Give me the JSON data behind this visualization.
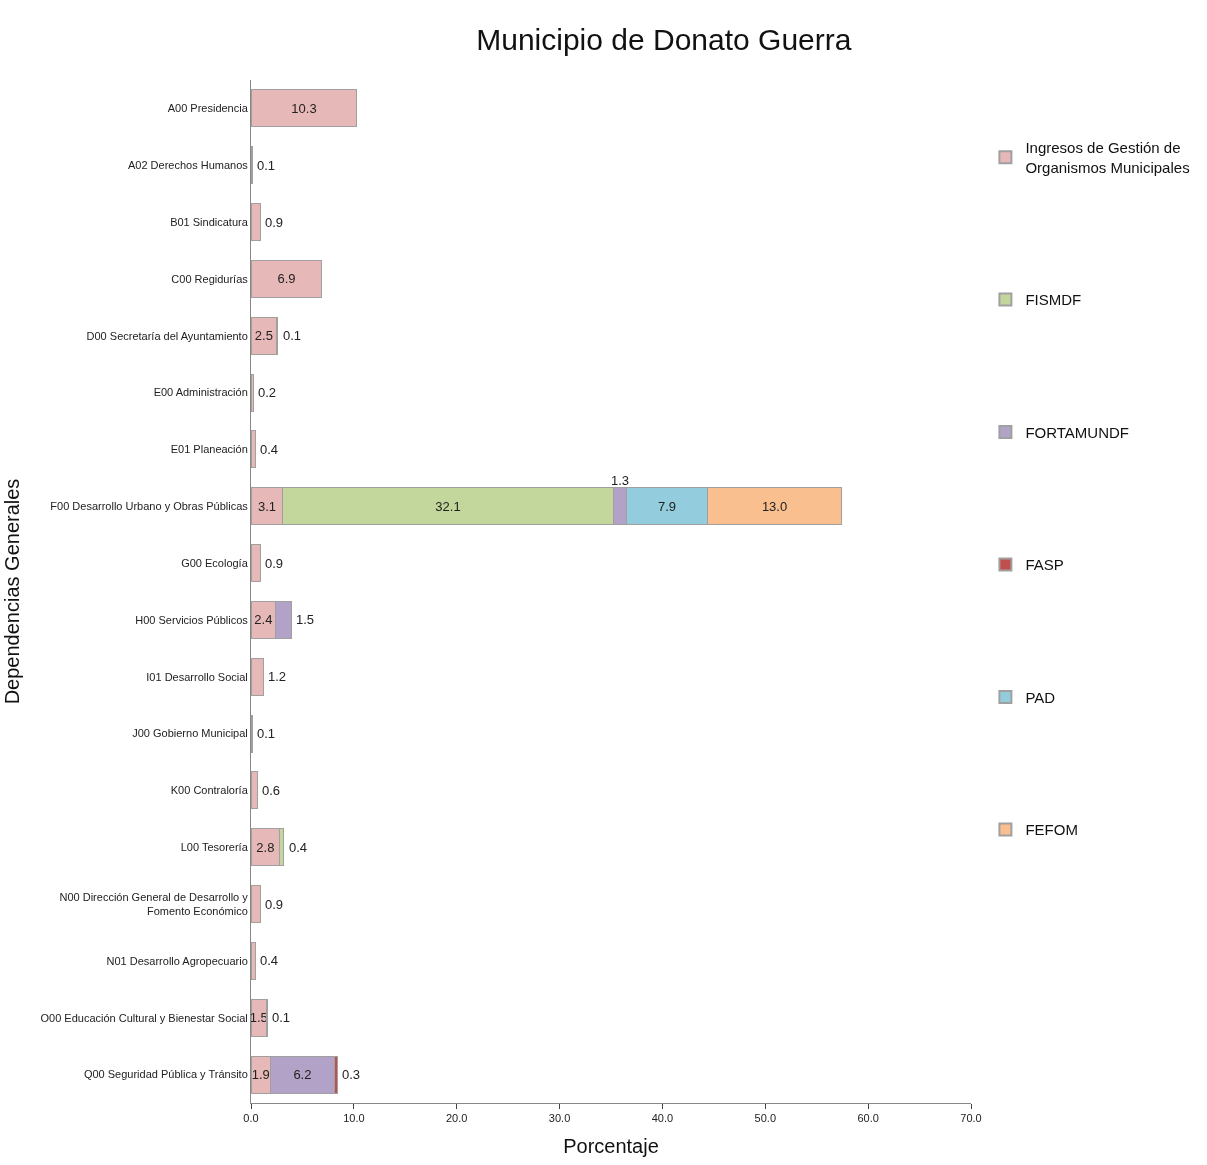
{
  "chart_data": {
    "type": "bar",
    "orientation": "horizontal",
    "stacked": true,
    "data_labels": true,
    "title": "Municipio de Donato Guerra",
    "xlabel": "Porcentaje",
    "ylabel": "Dependencias Generales",
    "categories": [
      "A00 Presidencia",
      "A02 Derechos Humanos",
      "B01 Sindicatura",
      "C00 Regidurías",
      "D00 Secretaría del Ayuntamiento",
      "E00 Administración",
      "E01 Planeación",
      "F00 Desarrollo Urbano y Obras Públicas",
      "G00 Ecología",
      "H00 Servicios Públicos",
      "I01 Desarrollo Social",
      "J00 Gobierno Municipal",
      "K00 Contraloría",
      "L00 Tesorería",
      "N00 Dirección General de Desarrollo y Fomento Económico",
      "N01 Desarrollo Agropecuario",
      "O00 Educación Cultural y Bienestar Social",
      "Q00 Seguridad Pública y Tránsito"
    ],
    "series": [
      {
        "name": "Ingresos de Gestión de Organismos Municipales",
        "color": "#e6b9b8",
        "values": [
          10.3,
          0.1,
          0.9,
          6.9,
          2.5,
          0.2,
          0.4,
          3.1,
          0.9,
          2.4,
          1.2,
          0.1,
          0.6,
          2.8,
          0.9,
          0.4,
          1.5,
          1.9
        ]
      },
      {
        "name": "FISMDF",
        "color": "#c3d69b",
        "values": [
          null,
          null,
          null,
          null,
          null,
          null,
          null,
          32.1,
          null,
          null,
          null,
          null,
          null,
          0.4,
          null,
          null,
          null,
          null
        ]
      },
      {
        "name": "FORTAMUNDF",
        "color": "#b3a2c7",
        "values": [
          null,
          null,
          null,
          null,
          0.1,
          null,
          null,
          1.3,
          null,
          1.5,
          null,
          null,
          null,
          null,
          null,
          null,
          0.1,
          6.2
        ]
      },
      {
        "name": "FASP",
        "color": "#c0504d",
        "values": [
          null,
          null,
          null,
          null,
          null,
          null,
          null,
          null,
          null,
          null,
          null,
          null,
          null,
          null,
          null,
          null,
          null,
          0.3
        ]
      },
      {
        "name": "PAD",
        "color": "#93cddd",
        "values": [
          null,
          null,
          null,
          null,
          null,
          null,
          null,
          7.9,
          null,
          null,
          null,
          null,
          null,
          null,
          null,
          null,
          null,
          null
        ]
      },
      {
        "name": "FEFOM",
        "color": "#fabf8f",
        "values": [
          null,
          null,
          null,
          null,
          null,
          null,
          null,
          13.0,
          null,
          null,
          null,
          null,
          null,
          null,
          null,
          null,
          null,
          null
        ],
        "value_labels": [
          null,
          null,
          null,
          null,
          null,
          null,
          null,
          "13.0",
          null,
          null,
          null,
          null,
          null,
          null,
          null,
          null,
          null,
          null
        ]
      }
    ],
    "xlim": [
      0,
      70
    ],
    "xticks": [
      {
        "value": 0,
        "label": "0.0"
      },
      {
        "value": 10,
        "label": "10.0"
      },
      {
        "value": 20,
        "label": "20.0"
      },
      {
        "value": 30,
        "label": "30.0"
      },
      {
        "value": 40,
        "label": "40.0"
      },
      {
        "value": 50,
        "label": "50.0"
      },
      {
        "value": 60,
        "label": "60.0"
      },
      {
        "value": 70,
        "label": "70.0"
      }
    ],
    "legend": "right"
  }
}
